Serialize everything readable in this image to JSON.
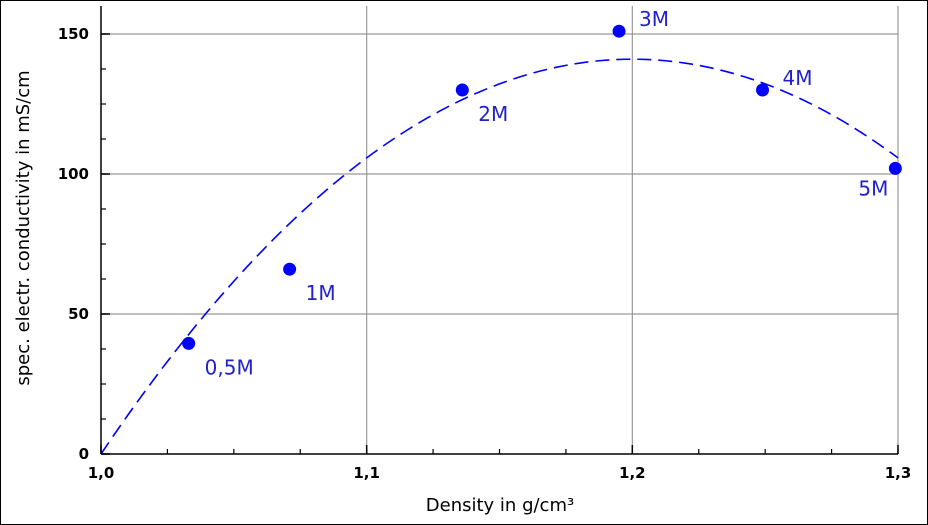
{
  "chart_data": {
    "type": "scatter",
    "xlabel": "Density in g/cm³",
    "ylabel": "spec. electr. conductivity in mS/cm",
    "xlim": [
      1.0,
      1.3
    ],
    "ylim": [
      0,
      160
    ],
    "x_ticks": [
      {
        "value": 1.0,
        "label": "1,0"
      },
      {
        "value": 1.1,
        "label": "1,1"
      },
      {
        "value": 1.2,
        "label": "1,2"
      },
      {
        "value": 1.3,
        "label": "1,3"
      }
    ],
    "y_ticks": [
      {
        "value": 0,
        "label": "0"
      },
      {
        "value": 50,
        "label": "50"
      },
      {
        "value": 100,
        "label": "100"
      },
      {
        "value": 150,
        "label": "150"
      }
    ],
    "grid": true,
    "colors": {
      "points": "#0000ff",
      "curve": "#0000ff",
      "labels": "#2222cc",
      "grid": "#999999"
    },
    "points": [
      {
        "x": 1.033,
        "y": 39.5,
        "label": "0,5M",
        "label_pos": "below-right"
      },
      {
        "x": 1.071,
        "y": 66,
        "label": "1M",
        "label_pos": "below-right"
      },
      {
        "x": 1.136,
        "y": 130,
        "label": "2M",
        "label_pos": "below-right"
      },
      {
        "x": 1.195,
        "y": 151,
        "label": "3M",
        "label_pos": "above-right"
      },
      {
        "x": 1.249,
        "y": 130,
        "label": "4M",
        "label_pos": "above-right"
      },
      {
        "x": 1.299,
        "y": 102,
        "label": "5M",
        "label_pos": "below-left"
      }
    ],
    "fit_curve": {
      "style": "dashed",
      "kind": "quadratic",
      "vertex_x": 1.2,
      "vertex_y": 141,
      "x_intercept": 1.0
    }
  }
}
